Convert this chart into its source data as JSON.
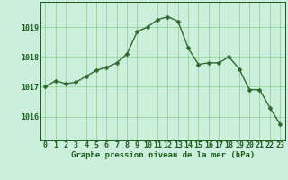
{
  "hours": [
    0,
    1,
    2,
    3,
    4,
    5,
    6,
    7,
    8,
    9,
    10,
    11,
    12,
    13,
    14,
    15,
    16,
    17,
    18,
    19,
    20,
    21,
    22,
    23
  ],
  "pressure": [
    1017.0,
    1017.2,
    1017.1,
    1017.15,
    1017.35,
    1017.55,
    1017.65,
    1017.8,
    1018.1,
    1018.85,
    1019.0,
    1019.25,
    1019.35,
    1019.2,
    1018.3,
    1017.75,
    1017.8,
    1017.8,
    1018.0,
    1017.6,
    1016.9,
    1016.9,
    1016.3,
    1015.75
  ],
  "line_color": "#2d6a2d",
  "marker_color": "#2d6a2d",
  "bg_color": "#cceedd",
  "grid_color": "#88cc88",
  "axes_color": "#1a5c1a",
  "xlabel": "Graphe pression niveau de la mer (hPa)",
  "xlabel_fontsize": 6.5,
  "yticks": [
    1016,
    1017,
    1018,
    1019
  ],
  "ylim": [
    1015.2,
    1019.85
  ],
  "xlim": [
    -0.5,
    23.5
  ],
  "tick_fontsize": 6,
  "marker_size": 2.5,
  "line_width": 1.0
}
